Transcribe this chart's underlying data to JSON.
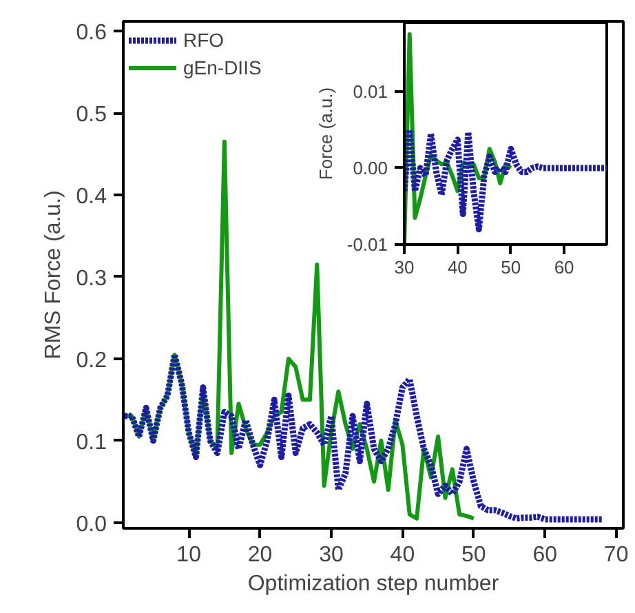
{
  "chart_data": [
    {
      "type": "line",
      "xlabel": "Optimization step number",
      "ylabel": "RMS Force (a.u.)",
      "xlim": [
        0.8,
        71
      ],
      "ylim": [
        -0.007,
        0.612
      ],
      "xticks": [
        10,
        20,
        30,
        40,
        50,
        60,
        70
      ],
      "yticks": [
        {
          "value": 0,
          "label": "0.0"
        },
        {
          "value": 0.1,
          "label": "0.1"
        },
        {
          "value": 0.2,
          "label": "0.2"
        },
        {
          "value": 0.3,
          "label": "0.3"
        },
        {
          "value": 0.4,
          "label": "0.4"
        },
        {
          "value": 0.5,
          "label": "0.5"
        },
        {
          "value": 0.6,
          "label": "0.6"
        }
      ],
      "grid": false,
      "legend": "top left",
      "series": [
        {
          "name": "gEn-DIIS",
          "color": "#139a13",
          "line_style": "solid",
          "x": [
            1,
            2,
            3,
            4,
            5,
            6,
            7,
            8,
            9,
            10,
            11,
            12,
            13,
            14,
            15,
            16,
            17,
            18,
            19,
            20,
            21,
            22,
            23,
            24,
            25,
            26,
            27,
            28,
            29,
            30,
            31,
            32,
            33,
            34,
            35,
            36,
            37,
            38,
            39,
            40,
            41,
            42,
            43,
            44,
            45,
            46,
            47,
            48,
            49,
            50
          ],
          "values": [
            0.13,
            0.13,
            0.105,
            0.14,
            0.1,
            0.14,
            0.155,
            0.205,
            0.17,
            0.11,
            0.08,
            0.165,
            0.1,
            0.09,
            0.465,
            0.085,
            0.145,
            0.115,
            0.095,
            0.095,
            0.11,
            0.13,
            0.135,
            0.2,
            0.19,
            0.15,
            0.15,
            0.315,
            0.045,
            0.11,
            0.16,
            0.12,
            0.09,
            0.12,
            0.09,
            0.05,
            0.1,
            0.04,
            0.125,
            0.095,
            0.01,
            0.005,
            0.09,
            0.055,
            0.105,
            0.03,
            0.065,
            0.01,
            0.008,
            0.005
          ]
        },
        {
          "name": "RFO",
          "color": "#1c1ca8",
          "line_style": "dotted",
          "x": [
            1,
            2,
            3,
            4,
            5,
            6,
            7,
            8,
            9,
            10,
            11,
            12,
            13,
            14,
            15,
            16,
            17,
            18,
            19,
            20,
            21,
            22,
            23,
            24,
            25,
            26,
            27,
            28,
            29,
            30,
            31,
            32,
            33,
            34,
            35,
            36,
            37,
            38,
            39,
            40,
            41,
            42,
            43,
            44,
            45,
            46,
            47,
            48,
            49,
            50,
            51,
            52,
            53,
            54,
            55,
            56,
            57,
            58,
            59,
            60,
            61,
            62,
            63,
            64,
            65,
            66,
            67,
            68
          ],
          "values": [
            0.13,
            0.13,
            0.105,
            0.14,
            0.1,
            0.14,
            0.155,
            0.205,
            0.17,
            0.11,
            0.08,
            0.165,
            0.1,
            0.085,
            0.135,
            0.13,
            0.09,
            0.125,
            0.095,
            0.07,
            0.1,
            0.15,
            0.08,
            0.155,
            0.085,
            0.115,
            0.12,
            0.11,
            0.095,
            0.13,
            0.04,
            0.06,
            0.13,
            0.075,
            0.145,
            0.09,
            0.075,
            0.09,
            0.12,
            0.165,
            0.175,
            0.13,
            0.09,
            0.07,
            0.035,
            0.045,
            0.035,
            0.05,
            0.09,
            0.05,
            0.02,
            0.015,
            0.015,
            0.012,
            0.008,
            0.005,
            0.006,
            0.006,
            0.007,
            0.004,
            0.004,
            0.004,
            0.004,
            0.004,
            0.004,
            0.004,
            0.004,
            0.004
          ]
        }
      ]
    },
    {
      "type": "line",
      "ylabel": "Force (a.u.)",
      "xlim": [
        30,
        68
      ],
      "ylim": [
        -0.01,
        0.019
      ],
      "xticks": [
        30,
        40,
        50,
        60
      ],
      "yticks": [
        {
          "value": -0.01,
          "label": "-0.01"
        },
        {
          "value": 0,
          "label": "0.00"
        },
        {
          "value": 0.01,
          "label": "0.01"
        }
      ],
      "grid": false,
      "series": [
        {
          "color": "#139a13",
          "line_style": "solid",
          "x": [
            30,
            31,
            32,
            33,
            34,
            35,
            36,
            37,
            38,
            39,
            40,
            41,
            42,
            43,
            44,
            45,
            46,
            47,
            48,
            49,
            50
          ],
          "values": [
            -0.01,
            0.0175,
            -0.0065,
            -0.004,
            -0.001,
            0.0017,
            0.001,
            0.0005,
            0.0007,
            -0.001,
            -0.003,
            0.0007,
            0.0005,
            0.0005,
            -0.0013,
            -0.0013,
            0.0025,
            0.0008,
            -0.002,
            0.0005,
            0
          ]
        },
        {
          "color": "#1c1ca8",
          "line_style": "dotted",
          "x": [
            30,
            31,
            32,
            33,
            34,
            35,
            36,
            37,
            38,
            39,
            40,
            41,
            42,
            43,
            44,
            45,
            46,
            47,
            48,
            49,
            50,
            51,
            52,
            53,
            54,
            55,
            56,
            57,
            58,
            59,
            60,
            61,
            62,
            63,
            64,
            65,
            66,
            67,
            68
          ],
          "values": [
            -0.003,
            0.005,
            -0.003,
            0,
            -0.001,
            0.0045,
            -0.0005,
            -0.0035,
            0.001,
            0.0025,
            0.0037,
            -0.006,
            0.0047,
            -0.003,
            -0.008,
            -0.001,
            0.0015,
            -0.0005,
            0,
            -0.0005,
            0.0025,
            0.0005,
            -0.0005,
            -0.0005,
            0,
            0.0002,
            0,
            0,
            0,
            0,
            0,
            0,
            0,
            0,
            0,
            0,
            0,
            0,
            0
          ]
        }
      ]
    }
  ]
}
